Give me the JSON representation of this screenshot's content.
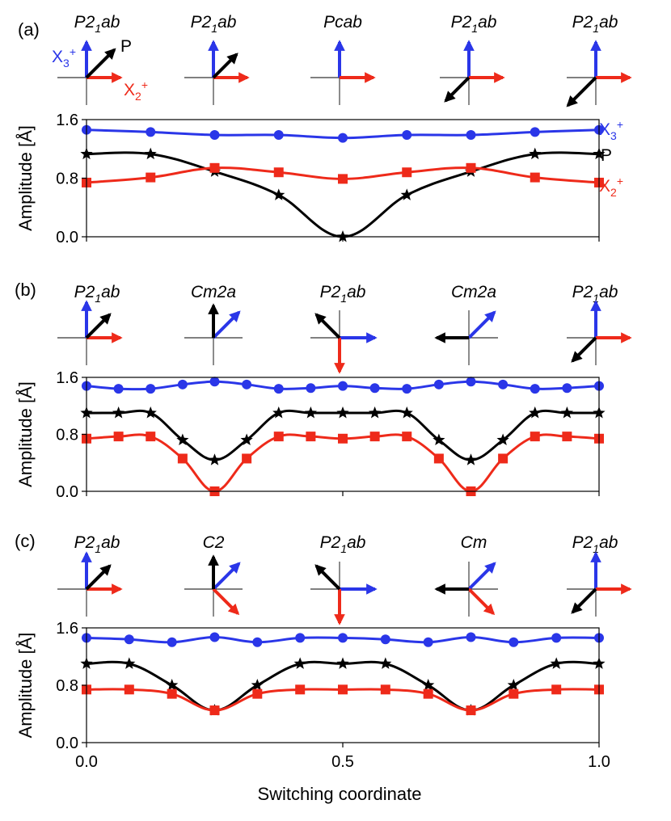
{
  "colors": {
    "x3": "#2a36e8",
    "p": "#000000",
    "x2": "#ee2a1a"
  },
  "figure": {
    "xlabel": "Switching coordinate",
    "ylabel": "Amplitude [Å]",
    "xtick_labels": [
      "0.0",
      "0.5",
      "1.0"
    ]
  },
  "panels": [
    {
      "label": "(a)",
      "phases": [
        {
          "sg": "P2",
          "sub": "1",
          "rest": "ab"
        },
        {
          "sg": "P2",
          "sub": "1",
          "rest": "ab"
        },
        {
          "sg": "Pcab",
          "sub": "",
          "rest": ""
        },
        {
          "sg": "P2",
          "sub": "1",
          "rest": "ab"
        },
        {
          "sg": "P2",
          "sub": "1",
          "rest": "ab"
        }
      ],
      "legend": {
        "x3": "X",
        "x3_sub": "3",
        "x3_sup": "+",
        "p": "P",
        "x2": "X",
        "x2_sub": "2",
        "x2_sup": "+"
      },
      "diagram_labels": {
        "x3": "X",
        "x3_sub": "3",
        "x3_sup": "+",
        "p": "P",
        "x2": "X",
        "x2_sub": "2",
        "x2_sup": "+"
      }
    },
    {
      "label": "(b)",
      "phases": [
        {
          "sg": "P2",
          "sub": "1",
          "rest": "ab"
        },
        {
          "sg": "Cm2a",
          "sub": "",
          "rest": ""
        },
        {
          "sg": "P2",
          "sub": "1",
          "rest": "ab"
        },
        {
          "sg": "Cm2a",
          "sub": "",
          "rest": ""
        },
        {
          "sg": "P2",
          "sub": "1",
          "rest": "ab"
        }
      ]
    },
    {
      "label": "(c)",
      "phases": [
        {
          "sg": "P2",
          "sub": "1",
          "rest": "ab"
        },
        {
          "sg": "C2",
          "sub": "",
          "rest": ""
        },
        {
          "sg": "P2",
          "sub": "1",
          "rest": "ab"
        },
        {
          "sg": "Cm",
          "sub": "",
          "rest": ""
        },
        {
          "sg": "P2",
          "sub": "1",
          "rest": "ab"
        }
      ]
    }
  ],
  "chart_data": [
    {
      "panel": "(a)",
      "type": "line",
      "xlim": [
        0,
        1
      ],
      "ylim": [
        0,
        1.6
      ],
      "yticks": [
        "0.0",
        "0.8",
        "1.6"
      ],
      "series": [
        {
          "name": "X3+",
          "color_key": "x3",
          "marker": "circle",
          "x": [
            0,
            0.125,
            0.25,
            0.375,
            0.5,
            0.625,
            0.75,
            0.875,
            1.0
          ],
          "y": [
            1.46,
            1.43,
            1.39,
            1.39,
            1.35,
            1.39,
            1.39,
            1.43,
            1.46
          ]
        },
        {
          "name": "P",
          "color_key": "p",
          "marker": "star",
          "x": [
            0,
            0.125,
            0.25,
            0.375,
            0.5,
            0.625,
            0.75,
            0.875,
            1.0
          ],
          "y": [
            1.13,
            1.13,
            0.89,
            0.57,
            0.0,
            0.57,
            0.89,
            1.13,
            1.13
          ]
        },
        {
          "name": "X2+",
          "color_key": "x2",
          "marker": "square",
          "x": [
            0,
            0.125,
            0.25,
            0.375,
            0.5,
            0.625,
            0.75,
            0.875,
            1.0
          ],
          "y": [
            0.74,
            0.81,
            0.94,
            0.88,
            0.79,
            0.88,
            0.94,
            0.81,
            0.74
          ]
        }
      ]
    },
    {
      "panel": "(b)",
      "type": "line",
      "xlim": [
        0,
        1
      ],
      "ylim": [
        0,
        1.6
      ],
      "yticks": [
        "0.0",
        "0.8",
        "1.6"
      ],
      "series": [
        {
          "name": "X3+",
          "color_key": "x3",
          "marker": "circle",
          "x": [
            0,
            0.0625,
            0.125,
            0.1875,
            0.25,
            0.3125,
            0.375,
            0.4375,
            0.5,
            0.5625,
            0.625,
            0.6875,
            0.75,
            0.8125,
            0.875,
            0.9375,
            1.0
          ],
          "y": [
            1.48,
            1.44,
            1.44,
            1.5,
            1.54,
            1.5,
            1.44,
            1.45,
            1.48,
            1.45,
            1.44,
            1.5,
            1.54,
            1.5,
            1.44,
            1.45,
            1.48
          ]
        },
        {
          "name": "P",
          "color_key": "p",
          "marker": "star",
          "x": [
            0,
            0.0625,
            0.125,
            0.1875,
            0.25,
            0.3125,
            0.375,
            0.4375,
            0.5,
            0.5625,
            0.625,
            0.6875,
            0.75,
            0.8125,
            0.875,
            0.9375,
            1.0
          ],
          "y": [
            1.1,
            1.1,
            1.1,
            0.72,
            0.44,
            0.72,
            1.1,
            1.1,
            1.1,
            1.1,
            1.1,
            0.72,
            0.44,
            0.72,
            1.1,
            1.1,
            1.1
          ]
        },
        {
          "name": "X2+",
          "color_key": "x2",
          "marker": "square",
          "x": [
            0,
            0.0625,
            0.125,
            0.1875,
            0.25,
            0.3125,
            0.375,
            0.4375,
            0.5,
            0.5625,
            0.625,
            0.6875,
            0.75,
            0.8125,
            0.875,
            0.9375,
            1.0
          ],
          "y": [
            0.74,
            0.77,
            0.77,
            0.46,
            0.0,
            0.46,
            0.77,
            0.77,
            0.74,
            0.77,
            0.77,
            0.46,
            0.0,
            0.46,
            0.77,
            0.77,
            0.74
          ]
        }
      ]
    },
    {
      "panel": "(c)",
      "type": "line",
      "xlim": [
        0,
        1
      ],
      "ylim": [
        0,
        1.6
      ],
      "yticks": [
        "0.0",
        "0.8",
        "1.6"
      ],
      "series": [
        {
          "name": "X3+",
          "color_key": "x3",
          "marker": "circle",
          "x": [
            0,
            0.0833,
            0.1667,
            0.25,
            0.3333,
            0.4167,
            0.5,
            0.5833,
            0.6667,
            0.75,
            0.8333,
            0.9167,
            1.0
          ],
          "y": [
            1.46,
            1.44,
            1.4,
            1.47,
            1.4,
            1.46,
            1.46,
            1.44,
            1.4,
            1.47,
            1.4,
            1.46,
            1.46
          ]
        },
        {
          "name": "P",
          "color_key": "p",
          "marker": "star",
          "x": [
            0,
            0.0833,
            0.1667,
            0.25,
            0.3333,
            0.4167,
            0.5,
            0.5833,
            0.6667,
            0.75,
            0.8333,
            0.9167,
            1.0
          ],
          "y": [
            1.1,
            1.1,
            0.8,
            0.45,
            0.8,
            1.1,
            1.1,
            1.1,
            0.8,
            0.45,
            0.8,
            1.1,
            1.1
          ]
        },
        {
          "name": "X2+",
          "color_key": "x2",
          "marker": "square",
          "x": [
            0,
            0.0833,
            0.1667,
            0.25,
            0.3333,
            0.4167,
            0.5,
            0.5833,
            0.6667,
            0.75,
            0.8333,
            0.9167,
            1.0
          ],
          "y": [
            0.74,
            0.74,
            0.68,
            0.45,
            0.68,
            0.74,
            0.74,
            0.74,
            0.68,
            0.45,
            0.68,
            0.74,
            0.74
          ]
        }
      ]
    }
  ],
  "arrow_diagrams": [
    [
      {
        "x3": "up",
        "x2": "right",
        "p": "ne",
        "p_long": true
      },
      {
        "x3": "up",
        "x2": "right",
        "p": "ne"
      },
      {
        "x3": "up",
        "x2": "right",
        "p": "none"
      },
      {
        "x3": "up",
        "x2": "right",
        "p": "sw"
      },
      {
        "x3": "up",
        "x2": "right",
        "p": "sw",
        "p_long": true
      }
    ],
    [
      {
        "x3": "up",
        "x2": "right",
        "p": "ne"
      },
      {
        "x3": "ne",
        "x2": "none",
        "p": "up"
      },
      {
        "x3": "right",
        "x2": "down",
        "p": "nw"
      },
      {
        "x3": "ne",
        "x2": "none",
        "p": "left"
      },
      {
        "x3": "up",
        "x2": "right",
        "p": "sw"
      }
    ],
    [
      {
        "x3": "up",
        "x2": "right",
        "p": "ne"
      },
      {
        "x3": "ne",
        "x2": "se",
        "p": "up"
      },
      {
        "x3": "right",
        "x2": "down",
        "p": "nw"
      },
      {
        "x3": "ne",
        "x2": "se",
        "p": "left"
      },
      {
        "x3": "up",
        "x2": "right",
        "p": "sw"
      }
    ]
  ]
}
